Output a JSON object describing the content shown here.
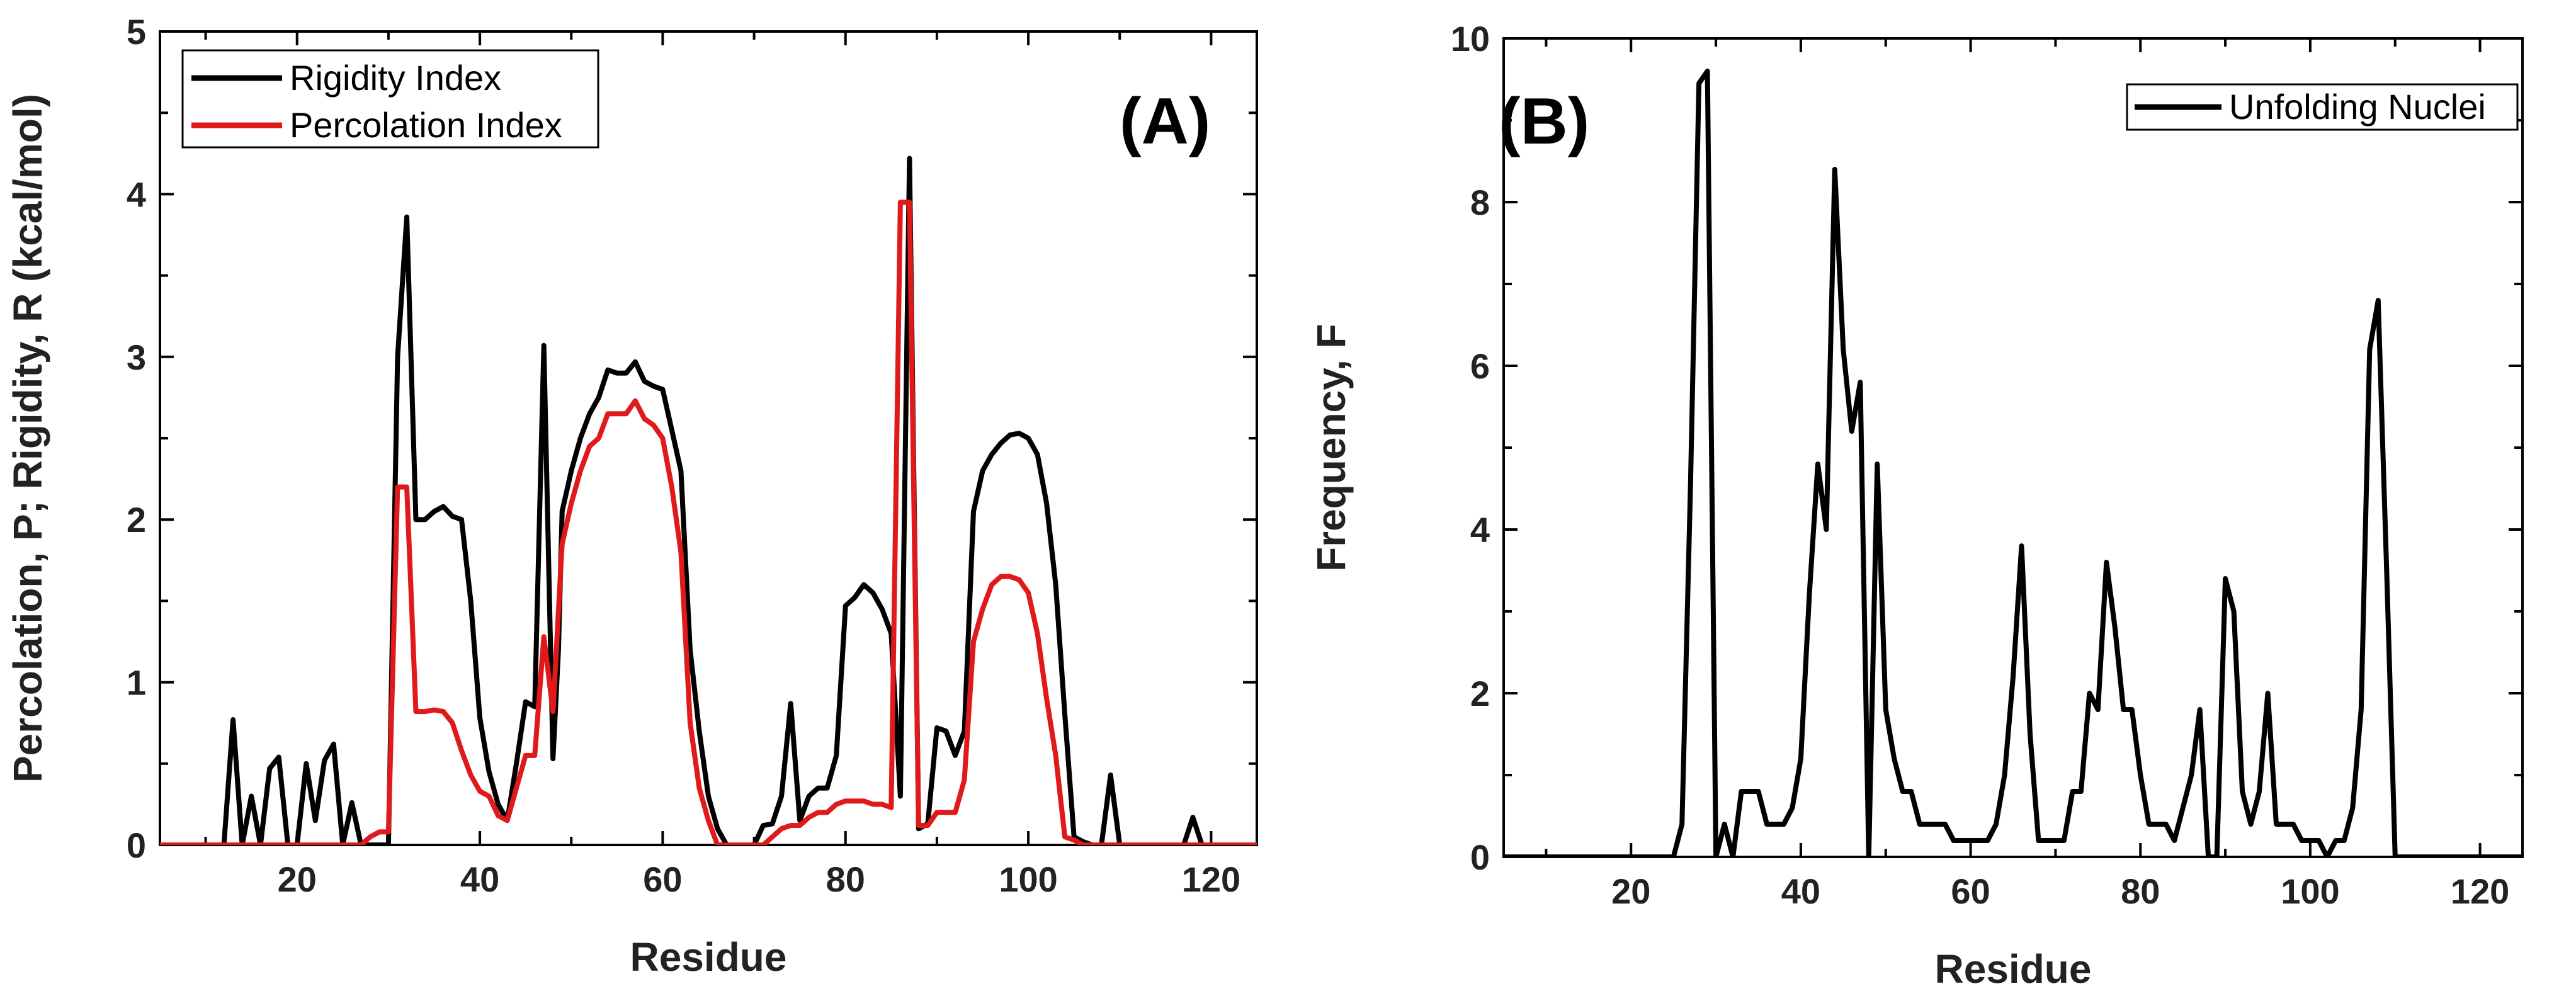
{
  "chart_data": [
    {
      "panel": "A",
      "type": "line",
      "panel_label": "(A)",
      "xlabel": "Residue",
      "ylabel": "Percolation, P; Rigidity, R (kcal/mol)",
      "xlim": [
        5,
        125
      ],
      "ylim": [
        0,
        5
      ],
      "xticks": [
        20,
        40,
        60,
        80,
        100,
        120
      ],
      "yticks": [
        0,
        1,
        2,
        3,
        4,
        5
      ],
      "legend_position": "top-left",
      "series": [
        {
          "name": "Rigidity Index",
          "color": "#000000",
          "x": [
            5,
            12,
            13,
            14,
            15,
            16,
            17,
            18,
            19,
            20,
            21,
            22,
            23,
            24,
            25,
            26,
            27,
            28,
            29,
            30,
            31,
            32,
            33,
            34,
            35,
            36,
            37,
            38,
            39,
            40,
            41,
            42,
            43,
            44,
            45,
            46,
            47,
            48,
            48.6,
            49,
            50,
            51,
            52,
            53,
            54,
            55,
            56,
            57,
            58,
            59,
            60,
            61,
            62,
            63,
            64,
            65,
            66,
            67,
            68,
            69,
            70,
            71,
            72,
            73,
            74,
            75,
            76,
            77,
            78,
            79,
            80,
            81,
            82,
            83,
            84,
            85,
            86,
            87,
            88,
            89,
            90,
            91,
            92,
            93,
            94,
            95,
            96,
            97,
            98,
            99,
            100,
            101,
            102,
            103,
            104,
            105,
            106,
            107,
            108,
            109,
            110,
            111,
            112,
            113,
            114,
            115,
            116,
            117,
            118,
            119,
            120,
            125
          ],
          "y": [
            0,
            0,
            0.77,
            0,
            0.3,
            0,
            0.47,
            0.54,
            0,
            0,
            0.5,
            0.15,
            0.52,
            0.62,
            0,
            0.26,
            0,
            0,
            0,
            0,
            3,
            3.86,
            2,
            2,
            2.05,
            2.08,
            2.02,
            2,
            1.5,
            0.78,
            0.45,
            0.25,
            0.15,
            0.5,
            0.88,
            0.85,
            3.07,
            0.53,
            1.2,
            2.05,
            2.3,
            2.5,
            2.65,
            2.75,
            2.92,
            2.9,
            2.9,
            2.97,
            2.85,
            2.82,
            2.8,
            2.55,
            2.3,
            1.2,
            0.7,
            0.3,
            0.1,
            0,
            0,
            0,
            0,
            0.12,
            0.13,
            0.3,
            0.87,
            0.15,
            0.3,
            0.35,
            0.35,
            0.55,
            1.47,
            1.52,
            1.6,
            1.55,
            1.45,
            1.3,
            0.3,
            4.22,
            0.1,
            0.13,
            0.72,
            0.7,
            0.55,
            0.7,
            2.05,
            2.3,
            2.4,
            2.47,
            2.52,
            2.53,
            2.5,
            2.4,
            2.1,
            1.6,
            0.8,
            0.05,
            0.02,
            0,
            0,
            0.43,
            0,
            0,
            0,
            0,
            0,
            0,
            0,
            0,
            0.17,
            0,
            0,
            0
          ]
        },
        {
          "name": "Percolation Index",
          "color": "#e0191b",
          "x": [
            5,
            27,
            28,
            29,
            30,
            31,
            32,
            33,
            34,
            35,
            36,
            37,
            38,
            39,
            40,
            41,
            42,
            43,
            44,
            45,
            46,
            47,
            48,
            49,
            50,
            51,
            52,
            53,
            54,
            55,
            56,
            57,
            58,
            59,
            60,
            61,
            62,
            63,
            64,
            65,
            66,
            67,
            68,
            69,
            70,
            71,
            72,
            73,
            74,
            75,
            76,
            77,
            78,
            79,
            80,
            81,
            82,
            83,
            84,
            85,
            86,
            87,
            88,
            89,
            90,
            91,
            92,
            93,
            94,
            95,
            96,
            97,
            98,
            99,
            100,
            101,
            102,
            103,
            104,
            105,
            106,
            107,
            108,
            109,
            125
          ],
          "y": [
            0,
            0,
            0.05,
            0.08,
            0.08,
            2.2,
            2.2,
            0.82,
            0.82,
            0.83,
            0.82,
            0.75,
            0.58,
            0.43,
            0.33,
            0.3,
            0.18,
            0.15,
            0.35,
            0.55,
            0.55,
            1.28,
            0.82,
            1.85,
            2.1,
            2.3,
            2.45,
            2.5,
            2.65,
            2.65,
            2.65,
            2.73,
            2.62,
            2.58,
            2.5,
            2.2,
            1.8,
            0.75,
            0.35,
            0.15,
            0,
            0,
            0,
            0,
            0,
            0,
            0.05,
            0.1,
            0.12,
            0.12,
            0.17,
            0.2,
            0.2,
            0.25,
            0.27,
            0.27,
            0.27,
            0.25,
            0.25,
            0.23,
            3.95,
            3.95,
            0.12,
            0.12,
            0.2,
            0.2,
            0.2,
            0.4,
            1.25,
            1.45,
            1.6,
            1.65,
            1.65,
            1.63,
            1.55,
            1.3,
            0.9,
            0.55,
            0.05,
            0.03,
            0,
            0,
            0,
            0,
            0
          ]
        }
      ]
    },
    {
      "panel": "B",
      "type": "line",
      "panel_label": "(B)",
      "xlabel": "Residue",
      "ylabel": "Frequency, F",
      "xlim": [
        5,
        125
      ],
      "ylim": [
        0,
        10
      ],
      "xticks": [
        20,
        40,
        60,
        80,
        100,
        120
      ],
      "yticks": [
        0,
        2,
        4,
        6,
        8,
        10
      ],
      "legend_position": "top-right",
      "series": [
        {
          "name": "Unfolding Nuclei",
          "color": "#000000",
          "x": [
            5,
            25,
            26,
            27,
            28,
            29,
            30,
            31,
            32,
            33,
            34,
            35,
            36,
            37,
            38,
            39,
            40,
            41,
            42,
            43,
            44,
            45,
            46,
            47,
            48,
            49,
            50,
            51,
            52,
            53,
            54,
            55,
            56,
            57,
            58,
            59,
            60,
            61,
            62,
            63,
            64,
            65,
            66,
            67,
            68,
            69,
            70,
            71,
            72,
            73,
            74,
            75,
            76,
            77,
            78,
            79,
            80,
            81,
            82,
            83,
            84,
            85,
            86,
            87,
            88,
            89,
            90,
            91,
            92,
            93,
            94,
            95,
            96,
            97,
            98,
            99,
            100,
            101,
            102,
            103,
            104,
            105,
            106,
            107,
            108,
            109,
            110,
            125
          ],
          "y": [
            0,
            0,
            0.4,
            4.5,
            9.45,
            9.6,
            0,
            0.4,
            0,
            0.8,
            0.8,
            0.8,
            0.4,
            0.4,
            0.4,
            0.6,
            1.2,
            3.2,
            4.8,
            4,
            8.4,
            6.2,
            5.2,
            5.8,
            0,
            4.8,
            1.8,
            1.2,
            0.8,
            0.8,
            0.4,
            0.4,
            0.4,
            0.4,
            0.2,
            0.2,
            0.2,
            0.2,
            0.2,
            0.4,
            1,
            2.2,
            3.8,
            1.5,
            0.2,
            0.2,
            0.2,
            0.2,
            0.8,
            0.8,
            2,
            1.8,
            3.6,
            2.8,
            1.8,
            1.8,
            1,
            0.4,
            0.4,
            0.4,
            0.2,
            0.6,
            1,
            1.8,
            0,
            0,
            3.4,
            3,
            0.8,
            0.4,
            0.8,
            2,
            0.4,
            0.4,
            0.4,
            0.2,
            0.2,
            0.2,
            0,
            0.2,
            0.2,
            0.6,
            1.8,
            6.2,
            6.8,
            3.5,
            0,
            0
          ]
        }
      ]
    }
  ]
}
